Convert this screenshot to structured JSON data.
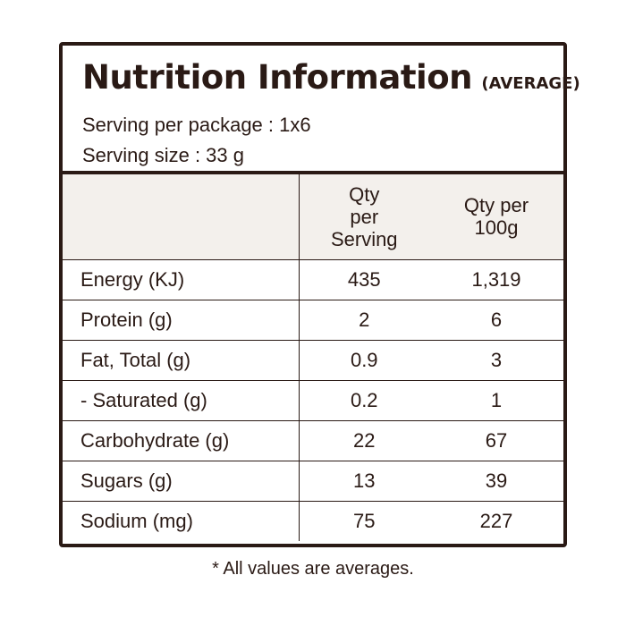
{
  "panel": {
    "title": "Nutrition Information",
    "subtitle": "(AVERAGE)",
    "serving_per_package": "Serving per package : 1x6",
    "serving_size": "Serving size : 33 g"
  },
  "table": {
    "headers": [
      "",
      "Qty\nper\nServing",
      "Qty per\n100g"
    ],
    "rows": [
      {
        "nutrient": "Energy (KJ)",
        "per_serving": "435",
        "per_100g": "1,319"
      },
      {
        "nutrient": "Protein (g)",
        "per_serving": "2",
        "per_100g": "6"
      },
      {
        "nutrient": "Fat, Total (g)",
        "per_serving": "0.9",
        "per_100g": "3"
      },
      {
        "nutrient": "- Saturated (g)",
        "per_serving": "0.2",
        "per_100g": "1"
      },
      {
        "nutrient": "Carbohydrate (g)",
        "per_serving": "22",
        "per_100g": "67"
      },
      {
        "nutrient": "Sugars (g)",
        "per_serving": "13",
        "per_100g": "39"
      },
      {
        "nutrient": "Sodium (mg)",
        "per_serving": "75",
        "per_100g": "227"
      }
    ]
  },
  "footnote": "* All values are averages.",
  "colors": {
    "ink": "#2a1a15",
    "header_bg": "#f3f0ec",
    "background": "#ffffff"
  }
}
